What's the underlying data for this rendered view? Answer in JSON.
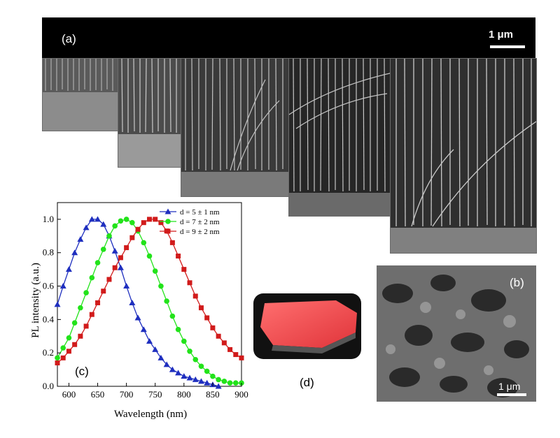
{
  "panel_a": {
    "label": "(a)",
    "scale_bar": "1 μm"
  },
  "panel_b": {
    "label": "(b)",
    "scale_bar": "1 μm"
  },
  "panel_c": {
    "label": "(c)"
  },
  "panel_d": {
    "label": "(d)"
  },
  "chart_data": {
    "type": "line",
    "xlabel": "Wavelength (nm)",
    "ylabel": "PL intensity (a.u.)",
    "xlim": [
      580,
      900
    ],
    "ylim": [
      0.0,
      1.1
    ],
    "xticks": [
      600,
      650,
      700,
      750,
      800,
      850,
      900
    ],
    "yticks": [
      0.0,
      0.2,
      0.4,
      0.6,
      0.8,
      1.0
    ],
    "grid": false,
    "legend_position": "top-right",
    "series": [
      {
        "name": "d = 5 ± 1 nm",
        "color": "#1f2fbf",
        "marker": "triangle",
        "x": [
          580,
          590,
          600,
          610,
          620,
          630,
          640,
          650,
          660,
          670,
          680,
          690,
          700,
          710,
          720,
          730,
          740,
          750,
          760,
          770,
          780,
          790,
          800,
          810,
          820,
          830,
          840,
          850,
          860
        ],
        "y": [
          0.49,
          0.6,
          0.7,
          0.8,
          0.88,
          0.95,
          1.0,
          1.0,
          0.97,
          0.9,
          0.81,
          0.71,
          0.6,
          0.5,
          0.41,
          0.34,
          0.27,
          0.22,
          0.17,
          0.13,
          0.1,
          0.08,
          0.06,
          0.05,
          0.04,
          0.03,
          0.02,
          0.01,
          0.0
        ]
      },
      {
        "name": "d = 7 ± 2 nm",
        "color": "#22e31a",
        "marker": "circle",
        "x": [
          580,
          590,
          600,
          610,
          620,
          630,
          640,
          650,
          660,
          670,
          680,
          690,
          700,
          710,
          720,
          730,
          740,
          750,
          760,
          770,
          780,
          790,
          800,
          810,
          820,
          830,
          840,
          850,
          860,
          870,
          880,
          890,
          900
        ],
        "y": [
          0.17,
          0.23,
          0.29,
          0.38,
          0.47,
          0.56,
          0.65,
          0.74,
          0.82,
          0.9,
          0.96,
          0.99,
          1.0,
          0.98,
          0.93,
          0.86,
          0.78,
          0.69,
          0.6,
          0.51,
          0.42,
          0.34,
          0.27,
          0.21,
          0.16,
          0.12,
          0.09,
          0.06,
          0.04,
          0.03,
          0.02,
          0.02,
          0.02
        ]
      },
      {
        "name": "d = 9 ± 2 nm",
        "color": "#d11b1b",
        "marker": "square",
        "x": [
          580,
          590,
          600,
          610,
          620,
          630,
          640,
          650,
          660,
          670,
          680,
          690,
          700,
          710,
          720,
          730,
          740,
          750,
          760,
          770,
          780,
          790,
          800,
          810,
          820,
          830,
          840,
          850,
          860,
          870,
          880,
          890,
          900
        ],
        "y": [
          0.14,
          0.17,
          0.21,
          0.25,
          0.3,
          0.36,
          0.43,
          0.5,
          0.57,
          0.64,
          0.71,
          0.77,
          0.83,
          0.89,
          0.94,
          0.98,
          1.0,
          1.0,
          0.98,
          0.93,
          0.86,
          0.78,
          0.7,
          0.62,
          0.54,
          0.47,
          0.41,
          0.35,
          0.3,
          0.26,
          0.22,
          0.19,
          0.17
        ]
      }
    ]
  }
}
